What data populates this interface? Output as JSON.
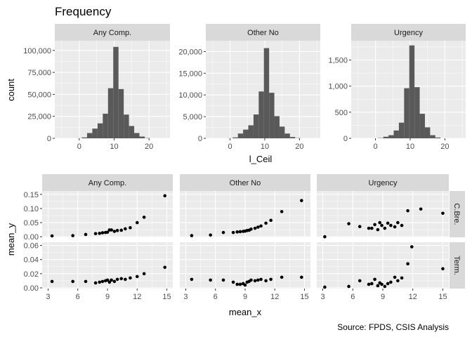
{
  "title": "Frequency",
  "caption": "Source: FPDS, CSIS Analysis",
  "colors": {
    "panel_bg": "#EBEBEB",
    "strip_bg": "#D9D9D9",
    "bar": "#595959",
    "point": "#000000",
    "grid": "#FFFFFF",
    "text": "#4D4D4D"
  },
  "chart_data": [
    {
      "type": "bar",
      "subtype": "histogram",
      "title": "Frequency",
      "xlabel": "l_Ceil",
      "ylabel": "count",
      "xlim": [
        -7,
        26
      ],
      "x_ticks": [
        0,
        10,
        20
      ],
      "bin_width": 1.5,
      "bin_centers": [
        0,
        1.5,
        3,
        4.5,
        6,
        7.5,
        9,
        10.5,
        12,
        13.5,
        15,
        16.5,
        18,
        19.5
      ],
      "panels": [
        {
          "name": "Any Comp.",
          "ylim": [
            0,
            111000
          ],
          "y_ticks": [
            0,
            25000,
            50000,
            75000,
            100000
          ],
          "y_tick_labels": [
            "0",
            "25,000",
            "50,000",
            "75,000",
            "100,000"
          ],
          "counts": [
            100,
            1000,
            6000,
            11000,
            17000,
            28000,
            57000,
            104000,
            56000,
            27000,
            14000,
            6000,
            2000,
            300
          ]
        },
        {
          "name": "Other No",
          "ylim": [
            0,
            22500
          ],
          "y_ticks": [
            0,
            5000,
            10000,
            15000,
            20000
          ],
          "y_tick_labels": [
            "0",
            "5,000",
            "10,000",
            "15,000",
            "20,000"
          ],
          "counts": [
            20,
            200,
            1100,
            2000,
            3000,
            5500,
            10800,
            20800,
            10500,
            5100,
            2700,
            1100,
            300,
            50
          ]
        },
        {
          "name": "Urgency",
          "ylim": [
            0,
            1870
          ],
          "y_ticks": [
            0,
            500,
            1000,
            1500
          ],
          "y_tick_labels": [
            "0",
            "500",
            "1,000",
            "1,500"
          ],
          "counts": [
            0,
            5,
            30,
            60,
            150,
            300,
            960,
            1780,
            980,
            470,
            210,
            60,
            15,
            0
          ]
        }
      ]
    },
    {
      "type": "scatter",
      "xlabel": "mean_x",
      "ylabel": "mean_y",
      "xlim": [
        2.4,
        15.6
      ],
      "x_ticks": [
        3,
        6,
        9,
        12,
        15
      ],
      "columns": [
        "Any Comp.",
        "Other No",
        "Urgency"
      ],
      "rows": [
        "C.Bre.",
        "Term."
      ],
      "row_ylim": [
        [
          -0.002,
          0.162
        ],
        [
          -0.001,
          0.0645
        ]
      ],
      "row_y_ticks": [
        [
          0.0,
          0.05,
          0.1,
          0.15
        ],
        [
          0.0,
          0.02,
          0.04,
          0.06
        ]
      ],
      "row_y_tick_labels": [
        [
          "0.00",
          "0.05",
          "0.10",
          "0.15"
        ],
        [
          "0.00",
          "0.02",
          "0.04",
          "0.06"
        ]
      ],
      "panels": [
        {
          "column": "Any Comp.",
          "row": "C.Bre.",
          "points": [
            [
              3.4,
              0.003
            ],
            [
              5.5,
              0.004
            ],
            [
              6.8,
              0.008
            ],
            [
              7.8,
              0.011
            ],
            [
              8.2,
              0.012
            ],
            [
              8.5,
              0.014
            ],
            [
              8.8,
              0.015
            ],
            [
              9.0,
              0.016
            ],
            [
              9.2,
              0.024
            ],
            [
              9.4,
              0.024
            ],
            [
              9.7,
              0.019
            ],
            [
              10.0,
              0.022
            ],
            [
              10.4,
              0.023
            ],
            [
              10.8,
              0.028
            ],
            [
              11.3,
              0.032
            ],
            [
              12.0,
              0.05
            ],
            [
              12.7,
              0.069
            ],
            [
              14.8,
              0.145
            ]
          ]
        },
        {
          "column": "Other No",
          "row": "C.Bre.",
          "points": [
            [
              3.6,
              0.004
            ],
            [
              5.5,
              0.006
            ],
            [
              6.8,
              0.015
            ],
            [
              7.8,
              0.015
            ],
            [
              8.2,
              0.017
            ],
            [
              8.5,
              0.018
            ],
            [
              8.8,
              0.019
            ],
            [
              9.0,
              0.02
            ],
            [
              9.2,
              0.022
            ],
            [
              9.4,
              0.023
            ],
            [
              9.6,
              0.027
            ],
            [
              10.0,
              0.03
            ],
            [
              10.3,
              0.034
            ],
            [
              10.6,
              0.038
            ],
            [
              11.1,
              0.048
            ],
            [
              11.6,
              0.058
            ],
            [
              12.7,
              0.089
            ],
            [
              14.7,
              0.128
            ]
          ]
        },
        {
          "column": "Urgency",
          "row": "C.Bre.",
          "points": [
            [
              3.2,
              0.0
            ],
            [
              5.6,
              0.046
            ],
            [
              6.7,
              0.036
            ],
            [
              7.6,
              0.03
            ],
            [
              7.9,
              0.03
            ],
            [
              8.2,
              0.043
            ],
            [
              8.5,
              0.025
            ],
            [
              8.7,
              0.05
            ],
            [
              8.9,
              0.04
            ],
            [
              9.2,
              0.03
            ],
            [
              9.5,
              0.048
            ],
            [
              9.8,
              0.04
            ],
            [
              10.2,
              0.035
            ],
            [
              10.5,
              0.05
            ],
            [
              10.9,
              0.04
            ],
            [
              11.5,
              0.092
            ],
            [
              12.8,
              0.098
            ],
            [
              15.0,
              0.083
            ]
          ]
        },
        {
          "column": "Any Comp.",
          "row": "Term.",
          "points": [
            [
              3.4,
              0.009
            ],
            [
              5.5,
              0.009
            ],
            [
              6.8,
              0.009
            ],
            [
              7.8,
              0.007
            ],
            [
              8.2,
              0.008
            ],
            [
              8.5,
              0.009
            ],
            [
              8.8,
              0.01
            ],
            [
              9.0,
              0.011
            ],
            [
              9.2,
              0.008
            ],
            [
              9.4,
              0.011
            ],
            [
              9.7,
              0.009
            ],
            [
              10.0,
              0.012
            ],
            [
              10.4,
              0.013
            ],
            [
              10.8,
              0.012
            ],
            [
              11.3,
              0.014
            ],
            [
              12.0,
              0.016
            ],
            [
              12.7,
              0.02
            ],
            [
              14.8,
              0.029
            ]
          ]
        },
        {
          "column": "Other No",
          "row": "Term.",
          "points": [
            [
              3.6,
              0.012
            ],
            [
              5.5,
              0.011
            ],
            [
              6.8,
              0.011
            ],
            [
              7.8,
              0.008
            ],
            [
              8.2,
              0.005
            ],
            [
              8.5,
              0.005
            ],
            [
              8.8,
              0.006
            ],
            [
              9.0,
              0.004
            ],
            [
              9.2,
              0.008
            ],
            [
              9.4,
              0.009
            ],
            [
              9.6,
              0.011
            ],
            [
              10.0,
              0.01
            ],
            [
              10.3,
              0.011
            ],
            [
              10.6,
              0.012
            ],
            [
              11.1,
              0.01
            ],
            [
              11.6,
              0.012
            ],
            [
              12.7,
              0.015
            ],
            [
              14.7,
              0.015
            ]
          ]
        },
        {
          "column": "Urgency",
          "row": "Term.",
          "points": [
            [
              3.2,
              0.001
            ],
            [
              5.6,
              0.002
            ],
            [
              6.7,
              0.01
            ],
            [
              7.6,
              0.005
            ],
            [
              7.9,
              0.006
            ],
            [
              8.2,
              0.012
            ],
            [
              8.5,
              0.003
            ],
            [
              8.7,
              0.007
            ],
            [
              8.9,
              0.005
            ],
            [
              9.2,
              0.002
            ],
            [
              9.5,
              0.006
            ],
            [
              9.8,
              0.008
            ],
            [
              10.2,
              0.015
            ],
            [
              10.5,
              0.01
            ],
            [
              10.9,
              0.014
            ],
            [
              11.5,
              0.034
            ],
            [
              11.9,
              0.058
            ],
            [
              15.0,
              0.027
            ]
          ]
        }
      ]
    }
  ]
}
